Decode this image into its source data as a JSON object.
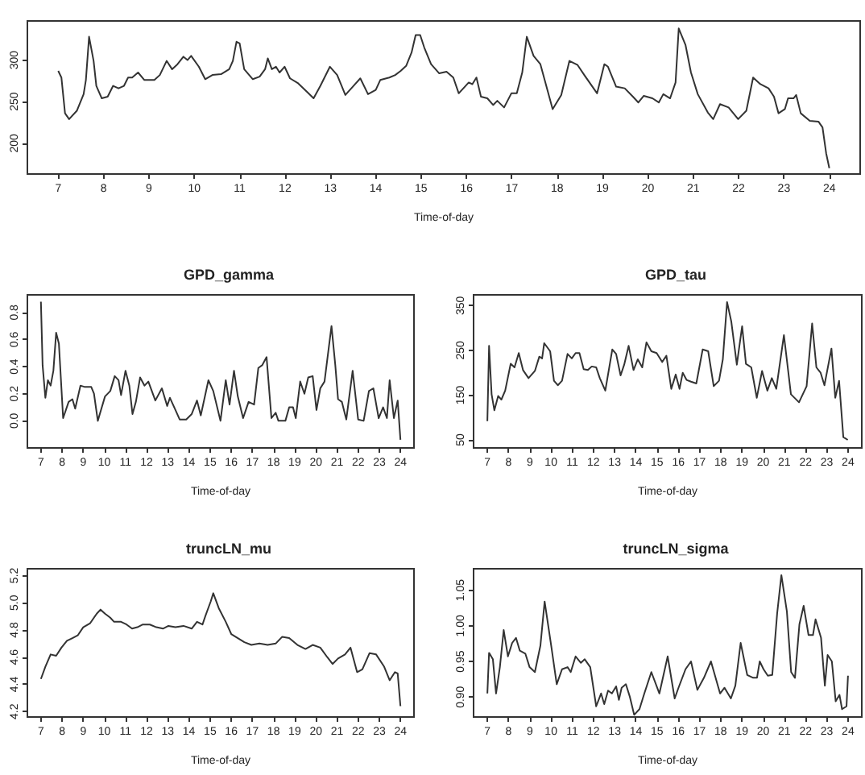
{
  "chart_data": [
    {
      "type": "line",
      "xlabel": "Time-of-day",
      "color": "#333333",
      "marker": "none",
      "x": [
        7.0,
        7.07,
        7.15,
        7.24,
        7.41,
        7.56,
        7.61,
        7.68,
        7.78,
        7.84,
        7.96,
        8.09,
        8.21,
        8.33,
        8.45,
        8.54,
        8.63,
        8.76,
        8.9,
        9.12,
        9.24,
        9.39,
        9.51,
        9.63,
        9.76,
        9.85,
        9.93,
        10.1,
        10.24,
        10.4,
        10.59,
        10.77,
        10.85,
        10.93,
        11.0,
        11.1,
        11.29,
        11.44,
        11.56,
        11.62,
        11.71,
        11.8,
        11.88,
        11.99,
        12.11,
        12.29,
        12.48,
        12.63,
        12.78,
        12.99,
        13.15,
        13.33,
        13.51,
        13.66,
        13.83,
        14.0,
        14.1,
        14.3,
        14.43,
        14.55,
        14.67,
        14.79,
        14.88,
        14.98,
        15.07,
        15.22,
        15.4,
        15.56,
        15.71,
        15.83,
        16.05,
        16.13,
        16.22,
        16.32,
        16.46,
        16.59,
        16.68,
        16.83,
        16.99,
        17.11,
        17.23,
        17.33,
        17.48,
        17.63,
        17.9,
        18.09,
        18.27,
        18.45,
        18.61,
        18.88,
        19.04,
        19.12,
        19.3,
        19.49,
        19.67,
        19.79,
        19.91,
        20.1,
        20.24,
        20.34,
        20.49,
        20.61,
        20.68,
        20.83,
        20.95,
        21.1,
        21.32,
        21.44,
        21.59,
        21.78,
        21.99,
        22.17,
        22.32,
        22.48,
        22.66,
        22.78,
        22.88,
        23.02,
        23.09,
        23.21,
        23.27,
        23.37,
        23.57,
        23.76,
        23.85,
        23.93,
        24.0
      ],
      "values": [
        287,
        279,
        236,
        229,
        239,
        259,
        276,
        328,
        299,
        269,
        254,
        256,
        269,
        266,
        269,
        279,
        279,
        285,
        276,
        276,
        282,
        299,
        289,
        295,
        304,
        300,
        305,
        292,
        277,
        282,
        283,
        289,
        299,
        322,
        320,
        289,
        277,
        280,
        289,
        302,
        289,
        292,
        285,
        292,
        278,
        272,
        262,
        254,
        269,
        292,
        282,
        258,
        269,
        278,
        259,
        264,
        276,
        279,
        282,
        287,
        293,
        309,
        330,
        330,
        315,
        295,
        284,
        286,
        279,
        260,
        273,
        271,
        279,
        256,
        254,
        246,
        251,
        243,
        260,
        260,
        285,
        328,
        305,
        295,
        241,
        258,
        299,
        294,
        281,
        260,
        295,
        292,
        268,
        266,
        256,
        249,
        257,
        254,
        249,
        259,
        254,
        273,
        338,
        318,
        285,
        259,
        237,
        229,
        247,
        243,
        229,
        239,
        279,
        271,
        266,
        256,
        236,
        241,
        254,
        254,
        258,
        236,
        227,
        226,
        219,
        188,
        170
      ],
      "xlim": [
        6.32,
        24.68
      ],
      "ylim": [
        163,
        347
      ],
      "xticks": [
        7,
        8,
        9,
        10,
        11,
        12,
        13,
        14,
        15,
        16,
        17,
        18,
        19,
        20,
        21,
        22,
        23,
        24
      ],
      "yticks": [
        200,
        250,
        300
      ]
    },
    {
      "type": "line",
      "title": "GPD_gamma",
      "xlabel": "Time-of-day",
      "color": "#333333",
      "marker": "none",
      "x": [
        7.0,
        7.08,
        7.21,
        7.33,
        7.46,
        7.59,
        7.72,
        7.85,
        8.05,
        8.31,
        8.49,
        8.62,
        8.87,
        9.08,
        9.38,
        9.51,
        9.69,
        10.03,
        10.28,
        10.49,
        10.67,
        10.79,
        11.0,
        11.18,
        11.33,
        11.49,
        11.69,
        11.9,
        12.08,
        12.41,
        12.72,
        12.97,
        13.1,
        13.36,
        13.56,
        13.87,
        14.13,
        14.38,
        14.56,
        14.92,
        15.15,
        15.49,
        15.74,
        15.92,
        16.13,
        16.31,
        16.56,
        16.82,
        17.08,
        17.28,
        17.46,
        17.67,
        17.9,
        18.1,
        18.23,
        18.56,
        18.74,
        18.92,
        19.05,
        19.26,
        19.46,
        19.64,
        19.85,
        20.03,
        20.21,
        20.41,
        20.74,
        20.92,
        21.05,
        21.23,
        21.44,
        21.74,
        22.0,
        22.26,
        22.51,
        22.72,
        22.97,
        23.18,
        23.36,
        23.49,
        23.69,
        23.87,
        24.0
      ],
      "values": [
        0.88,
        0.41,
        0.17,
        0.3,
        0.26,
        0.37,
        0.65,
        0.57,
        0.02,
        0.14,
        0.16,
        0.09,
        0.26,
        0.25,
        0.25,
        0.2,
        0.0,
        0.18,
        0.22,
        0.33,
        0.3,
        0.19,
        0.37,
        0.26,
        0.05,
        0.14,
        0.32,
        0.26,
        0.29,
        0.15,
        0.24,
        0.11,
        0.17,
        0.08,
        0.01,
        0.01,
        0.05,
        0.15,
        0.04,
        0.3,
        0.22,
        0.0,
        0.3,
        0.12,
        0.37,
        0.18,
        0.02,
        0.14,
        0.12,
        0.39,
        0.41,
        0.47,
        0.02,
        0.06,
        0.0,
        0.0,
        0.1,
        0.1,
        0.02,
        0.29,
        0.2,
        0.32,
        0.33,
        0.08,
        0.24,
        0.29,
        0.7,
        0.41,
        0.16,
        0.14,
        0.01,
        0.37,
        0.01,
        0.0,
        0.22,
        0.24,
        0.02,
        0.1,
        0.02,
        0.3,
        0.02,
        0.15,
        -0.14
      ],
      "xlim": [
        6.36,
        24.64
      ],
      "ylim": [
        -0.2,
        0.93
      ],
      "xticks": [
        7,
        8,
        9,
        10,
        11,
        12,
        13,
        14,
        15,
        16,
        17,
        18,
        19,
        20,
        21,
        22,
        23,
        24
      ],
      "yticks": [
        {
          "value": 0,
          "label": "0.0"
        },
        0.2,
        0.4,
        0.6,
        0.8
      ]
    },
    {
      "type": "line",
      "title": "GPD_tau",
      "xlabel": "Time-of-day",
      "color": "#333333",
      "marker": "none",
      "x": [
        7.0,
        7.08,
        7.2,
        7.33,
        7.51,
        7.66,
        7.84,
        8.1,
        8.28,
        8.48,
        8.68,
        8.94,
        9.24,
        9.45,
        9.58,
        9.68,
        9.96,
        10.14,
        10.32,
        10.52,
        10.78,
        10.98,
        11.16,
        11.34,
        11.54,
        11.74,
        11.92,
        12.13,
        12.3,
        12.56,
        12.89,
        13.07,
        13.28,
        13.45,
        13.66,
        13.89,
        14.09,
        14.3,
        14.5,
        14.73,
        14.98,
        15.24,
        15.44,
        15.67,
        15.88,
        16.06,
        16.21,
        16.39,
        16.6,
        16.85,
        17.15,
        17.41,
        17.67,
        17.92,
        18.1,
        18.3,
        18.5,
        18.76,
        19.01,
        19.19,
        19.44,
        19.7,
        19.95,
        20.2,
        20.41,
        20.62,
        20.98,
        21.31,
        21.69,
        22.05,
        22.31,
        22.51,
        22.71,
        22.89,
        23.22,
        23.4,
        23.58,
        23.78,
        23.99
      ],
      "values": [
        92,
        260,
        152,
        116,
        148,
        140,
        160,
        220,
        212,
        244,
        206,
        188,
        204,
        236,
        232,
        266,
        248,
        182,
        172,
        182,
        242,
        232,
        244,
        244,
        208,
        206,
        214,
        212,
        188,
        160,
        252,
        242,
        194,
        218,
        260,
        206,
        230,
        212,
        268,
        248,
        244,
        224,
        238,
        164,
        196,
        164,
        200,
        184,
        180,
        176,
        252,
        248,
        170,
        182,
        230,
        358,
        314,
        218,
        304,
        220,
        212,
        144,
        204,
        160,
        188,
        164,
        284,
        152,
        134,
        170,
        310,
        212,
        200,
        172,
        254,
        144,
        182,
        56,
        50
      ],
      "xlim": [
        6.35,
        24.65
      ],
      "ylim": [
        32,
        374
      ],
      "xticks": [
        7,
        8,
        9,
        10,
        11,
        12,
        13,
        14,
        15,
        16,
        17,
        18,
        19,
        20,
        21,
        22,
        23,
        24
      ],
      "yticks": [
        50,
        150,
        250,
        350
      ]
    },
    {
      "type": "line",
      "title": "truncLN_mu",
      "xlabel": "Time-of-day",
      "color": "#333333",
      "marker": "none",
      "x": [
        7.0,
        7.21,
        7.46,
        7.72,
        7.97,
        8.23,
        8.49,
        8.74,
        9.0,
        9.33,
        9.64,
        9.82,
        10.03,
        10.28,
        10.46,
        10.79,
        11.05,
        11.31,
        11.56,
        11.82,
        12.15,
        12.46,
        12.77,
        13.03,
        13.36,
        13.74,
        14.13,
        14.38,
        14.64,
        14.77,
        15.03,
        15.15,
        15.41,
        15.74,
        16.0,
        16.31,
        16.62,
        16.95,
        17.33,
        17.72,
        18.1,
        18.41,
        18.74,
        19.13,
        19.51,
        19.85,
        20.21,
        20.54,
        20.79,
        21.05,
        21.38,
        21.64,
        21.95,
        22.2,
        22.54,
        22.85,
        23.23,
        23.49,
        23.74,
        23.87,
        24.0
      ],
      "values": [
        4.44,
        4.53,
        4.62,
        4.61,
        4.67,
        4.72,
        4.74,
        4.76,
        4.82,
        4.85,
        4.92,
        4.95,
        4.92,
        4.89,
        4.86,
        4.86,
        4.84,
        4.81,
        4.82,
        4.84,
        4.84,
        4.82,
        4.81,
        4.83,
        4.82,
        4.83,
        4.81,
        4.86,
        4.84,
        4.9,
        5.01,
        5.07,
        4.96,
        4.86,
        4.77,
        4.74,
        4.71,
        4.69,
        4.7,
        4.69,
        4.7,
        4.75,
        4.74,
        4.69,
        4.66,
        4.69,
        4.67,
        4.6,
        4.55,
        4.59,
        4.62,
        4.67,
        4.49,
        4.51,
        4.63,
        4.62,
        4.53,
        4.43,
        4.49,
        4.48,
        4.24
      ],
      "xlim": [
        6.36,
        24.64
      ],
      "ylim": [
        4.16,
        5.25
      ],
      "xticks": [
        7,
        8,
        9,
        10,
        11,
        12,
        13,
        14,
        15,
        16,
        17,
        18,
        19,
        20,
        21,
        22,
        23,
        24
      ],
      "yticks": [
        4.2,
        4.4,
        4.6,
        4.8,
        {
          "value": 5,
          "label": "5.0"
        },
        5.2
      ]
    },
    {
      "type": "line",
      "title": "truncLN_sigma",
      "xlabel": "Time-of-day",
      "color": "#333333",
      "marker": "none",
      "x": [
        7.0,
        7.08,
        7.26,
        7.41,
        7.59,
        7.77,
        7.97,
        8.17,
        8.35,
        8.53,
        8.79,
        8.99,
        9.24,
        9.5,
        9.7,
        10.01,
        10.27,
        10.52,
        10.78,
        10.93,
        11.16,
        11.41,
        11.59,
        11.85,
        12.13,
        12.36,
        12.51,
        12.69,
        12.87,
        13.07,
        13.2,
        13.33,
        13.53,
        13.71,
        13.92,
        14.17,
        14.4,
        14.73,
        15.11,
        15.5,
        15.83,
        16.01,
        16.34,
        16.6,
        16.9,
        17.21,
        17.54,
        17.97,
        18.18,
        18.48,
        18.69,
        18.94,
        19.25,
        19.53,
        19.71,
        19.84,
        20.02,
        20.22,
        20.43,
        20.66,
        20.86,
        21.12,
        21.32,
        21.5,
        21.71,
        21.91,
        22.14,
        22.35,
        22.47,
        22.73,
        22.91,
        23.04,
        23.24,
        23.42,
        23.6,
        23.72,
        23.93,
        24.0
      ],
      "values": [
        0.905,
        0.962,
        0.953,
        0.905,
        0.942,
        0.994,
        0.957,
        0.976,
        0.983,
        0.965,
        0.961,
        0.942,
        0.935,
        0.972,
        1.034,
        0.972,
        0.918,
        0.939,
        0.942,
        0.935,
        0.957,
        0.948,
        0.953,
        0.942,
        0.887,
        0.905,
        0.89,
        0.909,
        0.905,
        0.915,
        0.896,
        0.913,
        0.918,
        0.901,
        0.875,
        0.883,
        0.905,
        0.935,
        0.905,
        0.957,
        0.898,
        0.913,
        0.939,
        0.95,
        0.91,
        0.927,
        0.95,
        0.905,
        0.913,
        0.898,
        0.916,
        0.976,
        0.931,
        0.927,
        0.927,
        0.95,
        0.939,
        0.93,
        0.931,
        1.017,
        1.071,
        1.02,
        0.935,
        0.927,
        1.002,
        1.028,
        0.987,
        0.987,
        1.009,
        0.983,
        0.916,
        0.959,
        0.95,
        0.894,
        0.903,
        0.883,
        0.887,
        0.93
      ],
      "xlim": [
        6.35,
        24.65
      ],
      "ylim": [
        0.872,
        1.08
      ],
      "xticks": [
        7,
        8,
        9,
        10,
        11,
        12,
        13,
        14,
        15,
        16,
        17,
        18,
        19,
        20,
        21,
        22,
        23,
        24
      ],
      "yticks": [
        {
          "value": 0.9,
          "label": "0.90"
        },
        0.95,
        {
          "value": 1,
          "label": "1.00"
        },
        1.05
      ]
    }
  ]
}
